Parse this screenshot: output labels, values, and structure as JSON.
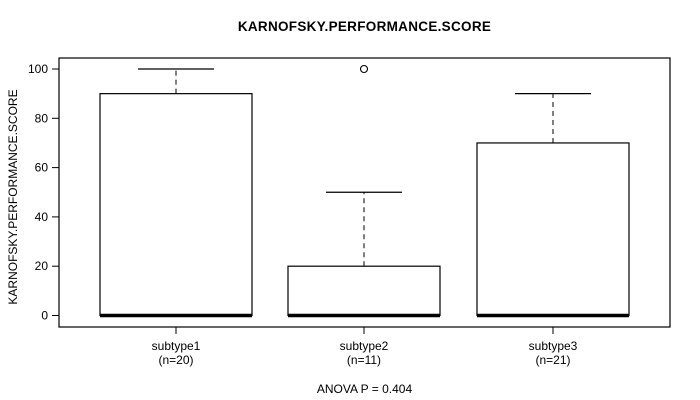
{
  "title": "KARNOFSKY.PERFORMANCE.SCORE",
  "footer": "ANOVA P = 0.404",
  "colors": {
    "line": "#000000",
    "box_fill": "#ffffff",
    "background": "#ffffff"
  },
  "chart_data": {
    "type": "boxplot",
    "title": "KARNOFSKY.PERFORMANCE.SCORE",
    "ylabel": "KARNOFSKY.PERFORMANCE.SCORE",
    "xlabel": "",
    "ylim": [
      0,
      100
    ],
    "yticks": [
      0,
      20,
      40,
      60,
      80,
      100
    ],
    "grid": false,
    "annotation": "ANOVA P = 0.404",
    "groups": [
      {
        "label": "subtype1",
        "sublabel": "(n=20)",
        "n": 20,
        "q1": 0,
        "median": 0,
        "q3": 90,
        "whisker_low": 0,
        "whisker_high": 100,
        "outliers": []
      },
      {
        "label": "subtype2",
        "sublabel": "(n=11)",
        "n": 11,
        "q1": 0,
        "median": 0,
        "q3": 20,
        "whisker_low": 0,
        "whisker_high": 50,
        "outliers": [
          100
        ]
      },
      {
        "label": "subtype3",
        "sublabel": "(n=21)",
        "n": 21,
        "q1": 0,
        "median": 0,
        "q3": 70,
        "whisker_low": 0,
        "whisker_high": 90,
        "outliers": []
      }
    ]
  }
}
